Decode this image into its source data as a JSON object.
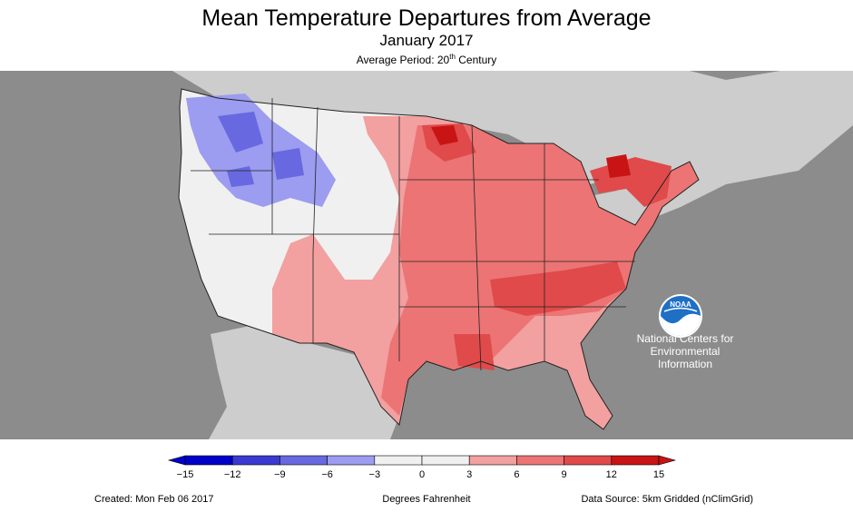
{
  "header": {
    "title": "Mean Temperature Departures from Average",
    "subtitle": "January 2017",
    "period_prefix": "Average Period: 20",
    "period_sup": "th",
    "period_suffix": " Century"
  },
  "map": {
    "legend_title": "Degrees Fahrenheit",
    "scale_ticks": [
      "−15",
      "−12",
      "−9",
      "−6",
      "−3",
      "0",
      "3",
      "6",
      "9",
      "12",
      "15"
    ],
    "scale_colors": [
      "#0000c8",
      "#3a3ad2",
      "#6868e0",
      "#9c9cf0",
      "#f0f0f0",
      "#f0f0f0",
      "#f2a0a0",
      "#ec7474",
      "#e04a4a",
      "#c81414"
    ],
    "colors": {
      "ocean": "#8c8c8c",
      "land_other": "#cdcdcd",
      "near_normal": "#f0f0f0",
      "warm_3_6": "#f2a0a0",
      "warm_6_9": "#ec7474",
      "warm_9_12": "#e04a4a",
      "warm_12_15": "#c81414",
      "cool_3_6": "#9c9cf0",
      "cool_6_9": "#6868e0"
    }
  },
  "noaa": {
    "logo_text": "NOAA",
    "line1": "National Centers for",
    "line2": "Environmental",
    "line3": "Information"
  },
  "footer": {
    "created": "Created: Mon Feb 06 2017",
    "source": "Data Source: 5km Gridded (nClimGrid)"
  }
}
